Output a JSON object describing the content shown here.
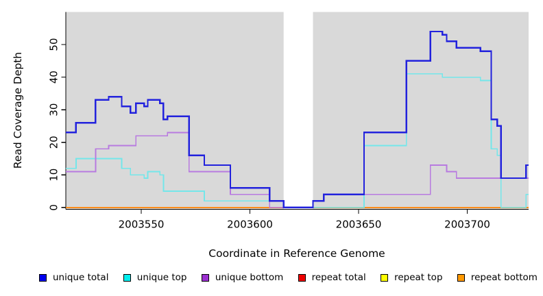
{
  "chart_data": {
    "type": "step-line",
    "title": "",
    "xlabel": "Coordinate in Reference Genome",
    "ylabel": "Read Coverage Depth",
    "xlim": [
      2003515.3,
      2003728.2
    ],
    "ylim": [
      0,
      60
    ],
    "x_ticks": [
      2003550,
      2003600,
      2003650,
      2003700
    ],
    "y_ticks": [
      0,
      10,
      20,
      30,
      40,
      50
    ],
    "grid": false,
    "legend_position": "bottom",
    "plot_background": "#d9d9d9",
    "page_background": "#ffffff",
    "axis_color": "#000000",
    "no_data_gap": {
      "x_start": 2003615.5,
      "x_end": 2003629,
      "color": "#ffffff"
    },
    "series": [
      {
        "name": "unique total",
        "swatch": "#0000ee",
        "line_color": "#2222dd",
        "width": 2.4,
        "z": 6,
        "steps": [
          [
            2003515.3,
            23
          ],
          [
            2003520,
            26
          ],
          [
            2003529,
            33
          ],
          [
            2003535,
            34
          ],
          [
            2003541,
            31
          ],
          [
            2003545,
            29
          ],
          [
            2003547.5,
            32
          ],
          [
            2003551.3,
            31
          ],
          [
            2003553,
            33
          ],
          [
            2003558.6,
            32
          ],
          [
            2003560.2,
            27
          ],
          [
            2003562,
            28
          ],
          [
            2003572,
            16
          ],
          [
            2003579,
            13
          ],
          [
            2003591,
            6
          ],
          [
            2003609,
            2
          ],
          [
            2003615.5,
            0
          ],
          [
            2003629,
            2
          ],
          [
            2003634,
            4
          ],
          [
            2003652.5,
            23
          ],
          [
            2003672,
            45
          ],
          [
            2003683,
            54
          ],
          [
            2003688.5,
            53
          ],
          [
            2003690.5,
            51
          ],
          [
            2003695,
            49
          ],
          [
            2003706,
            48
          ],
          [
            2003711,
            27
          ],
          [
            2003713.8,
            25
          ],
          [
            2003715.5,
            9
          ],
          [
            2003727,
            13
          ]
        ]
      },
      {
        "name": "unique top",
        "swatch": "#00eeee",
        "line_color": "#74e6ea",
        "width": 1.7,
        "z": 4,
        "steps": [
          [
            2003515.3,
            12
          ],
          [
            2003520,
            15
          ],
          [
            2003541,
            12
          ],
          [
            2003545,
            10
          ],
          [
            2003551.3,
            9
          ],
          [
            2003553,
            11
          ],
          [
            2003558.6,
            10
          ],
          [
            2003560.2,
            5
          ],
          [
            2003579,
            2
          ],
          [
            2003615.5,
            0
          ],
          [
            2003652.5,
            19
          ],
          [
            2003672,
            41
          ],
          [
            2003688.5,
            40
          ],
          [
            2003706,
            39
          ],
          [
            2003711,
            18
          ],
          [
            2003713.8,
            16
          ],
          [
            2003715.5,
            0
          ],
          [
            2003727,
            4
          ]
        ]
      },
      {
        "name": "unique bottom",
        "swatch": "#9b30d0",
        "line_color": "#b87ae0",
        "width": 1.7,
        "z": 5,
        "steps": [
          [
            2003515.3,
            11
          ],
          [
            2003529,
            18
          ],
          [
            2003535,
            19
          ],
          [
            2003547.5,
            22
          ],
          [
            2003562,
            23
          ],
          [
            2003572,
            11
          ],
          [
            2003591,
            4
          ],
          [
            2003609,
            0
          ],
          [
            2003629,
            2
          ],
          [
            2003634,
            4
          ],
          [
            2003683,
            13
          ],
          [
            2003690.5,
            11
          ],
          [
            2003695,
            9
          ]
        ]
      },
      {
        "name": "repeat total",
        "swatch": "#ee0000",
        "line_color": "#e03030",
        "width": 1.7,
        "z": 1,
        "steps": [
          [
            2003515.3,
            0
          ]
        ]
      },
      {
        "name": "repeat top",
        "swatch": "#ffff00",
        "line_color": "#ffee00",
        "width": 1.7,
        "z": 2,
        "steps": [
          [
            2003515.3,
            0
          ]
        ]
      },
      {
        "name": "repeat bottom",
        "swatch": "#ff9900",
        "line_color": "#ff8c1a",
        "width": 2.0,
        "z": 3,
        "steps": [
          [
            2003515.3,
            0
          ]
        ]
      }
    ]
  }
}
